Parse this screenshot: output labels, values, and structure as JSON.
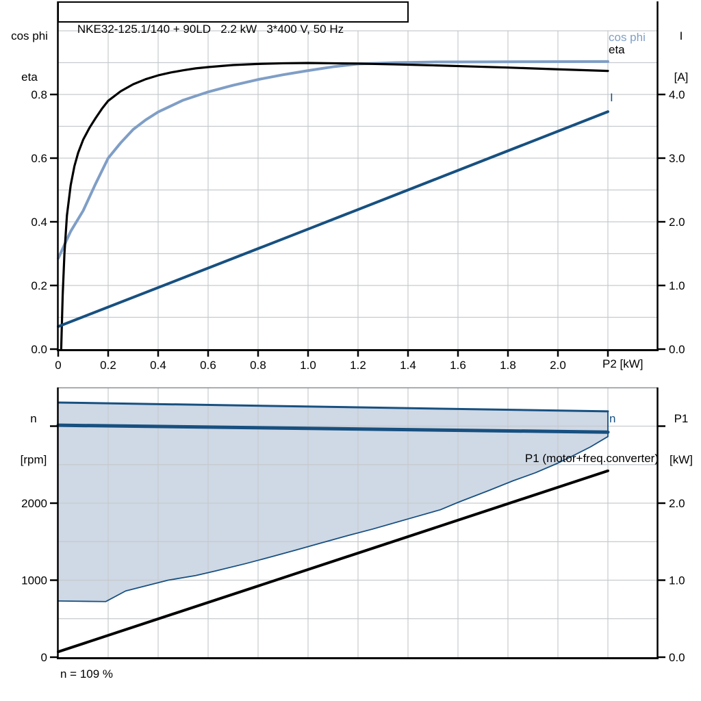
{
  "title": "NKE32-125.1/140 + 90LD   2.2 kW   3*400 V, 50 Hz",
  "axis_titles": {
    "top_left": [
      "cos phi",
      "eta"
    ],
    "top_right": [
      "I",
      "[A]"
    ],
    "bottom_left": [
      "n",
      "[rpm]"
    ],
    "bottom_right": [
      "P1",
      "[kW]"
    ],
    "x": "P2 [kW]"
  },
  "curve_labels": {
    "cos_phi": "cos phi",
    "eta": "eta",
    "current": "I",
    "speed": "n",
    "p1": "P1 (motor+freq.converter)"
  },
  "note": "n = 109 %",
  "colors": {
    "light_blue": "#7f9ec6",
    "dark_blue": "#175080",
    "envelope_fill": "#cfd8e5",
    "grid": "#c6cacd",
    "frame_gray": "#8a8f93",
    "axis": "#000000"
  },
  "chart_data": [
    {
      "id": "top-chart",
      "type": "line",
      "title": "NKE32-125.1/140 + 90LD   2.2 kW   3*400 V, 50 Hz",
      "x_axis": {
        "label": "P2 [kW]",
        "min": 0,
        "max": 2.4,
        "grid_step": 0.2,
        "ticks": [
          0,
          0.2,
          0.4,
          0.6,
          0.8,
          1.0,
          1.2,
          1.4,
          1.6,
          1.8,
          2.0,
          2.2
        ],
        "tick_labels": [
          "0",
          "0.2",
          "0.4",
          "0.6",
          "0.8",
          "1.0",
          "1.2",
          "1.4",
          "1.6",
          "1.8",
          "2.0",
          ""
        ]
      },
      "y_left": {
        "labels": [
          "cos phi",
          "eta"
        ],
        "min": 0,
        "max": 1.0,
        "grid_step": 0.1,
        "ticks": [
          0,
          0.2,
          0.4,
          0.6,
          0.8
        ],
        "tick_labels": [
          "0.0",
          "0.2",
          "0.4",
          "0.6",
          "0.8"
        ]
      },
      "y_right": {
        "labels": [
          "I",
          "[A]"
        ],
        "min": 0,
        "max": 5.0,
        "grid_step": 0.5,
        "ticks": [
          0,
          1,
          2,
          3,
          4
        ],
        "tick_labels": [
          "0.0",
          "1.0",
          "2.0",
          "3.0",
          "4.0"
        ]
      },
      "grid": true,
      "legend_position": "right-end-of-curves",
      "series": [
        {
          "name": "cos phi",
          "axis": "left",
          "color": "#7f9ec6",
          "width": 4,
          "points": [
            [
              0,
              0.285
            ],
            [
              0.05,
              0.37
            ],
            [
              0.1,
              0.435
            ],
            [
              0.15,
              0.52
            ],
            [
              0.2,
              0.6
            ],
            [
              0.25,
              0.648
            ],
            [
              0.3,
              0.69
            ],
            [
              0.35,
              0.72
            ],
            [
              0.4,
              0.745
            ],
            [
              0.5,
              0.782
            ],
            [
              0.6,
              0.808
            ],
            [
              0.7,
              0.829
            ],
            [
              0.8,
              0.847
            ],
            [
              0.9,
              0.862
            ],
            [
              1.0,
              0.875
            ],
            [
              1.1,
              0.887
            ],
            [
              1.2,
              0.896
            ],
            [
              1.35,
              0.9
            ],
            [
              1.5,
              0.902
            ],
            [
              1.7,
              0.9025
            ],
            [
              1.9,
              0.903
            ],
            [
              2.2,
              0.9035
            ]
          ]
        },
        {
          "name": "eta",
          "axis": "left",
          "color": "#000000",
          "width": 3.2,
          "points": [
            [
              0.012,
              0
            ],
            [
              0.018,
              0.17
            ],
            [
              0.025,
              0.3
            ],
            [
              0.035,
              0.42
            ],
            [
              0.05,
              0.515
            ],
            [
              0.065,
              0.575
            ],
            [
              0.08,
              0.617
            ],
            [
              0.1,
              0.658
            ],
            [
              0.125,
              0.695
            ],
            [
              0.15,
              0.726
            ],
            [
              0.175,
              0.755
            ],
            [
              0.2,
              0.78
            ],
            [
              0.25,
              0.81
            ],
            [
              0.3,
              0.832
            ],
            [
              0.35,
              0.848
            ],
            [
              0.4,
              0.86
            ],
            [
              0.45,
              0.869
            ],
            [
              0.5,
              0.876
            ],
            [
              0.55,
              0.882
            ],
            [
              0.6,
              0.886
            ],
            [
              0.7,
              0.8925
            ],
            [
              0.8,
              0.896
            ],
            [
              0.9,
              0.898
            ],
            [
              1.0,
              0.899
            ],
            [
              1.1,
              0.898
            ],
            [
              1.2,
              0.897
            ],
            [
              1.35,
              0.8945
            ],
            [
              1.5,
              0.8915
            ],
            [
              1.65,
              0.888
            ],
            [
              1.8,
              0.8845
            ],
            [
              2.0,
              0.879
            ],
            [
              2.2,
              0.874
            ]
          ]
        },
        {
          "name": "I",
          "axis": "right",
          "color": "#175080",
          "width": 4,
          "points": [
            [
              0,
              0.355
            ],
            [
              1.0,
              1.885
            ],
            [
              2.2,
              3.73
            ]
          ]
        }
      ]
    },
    {
      "id": "bottom-chart",
      "type": "line+area",
      "x_axis": {
        "label": "",
        "min": 0,
        "max": 2.4,
        "grid_step": 0.2,
        "ticks": [],
        "tick_labels": []
      },
      "y_left": {
        "labels": [
          "n",
          "[rpm]"
        ],
        "min": 0,
        "max": 3500,
        "grid_step": 500,
        "ticks": [
          0,
          1000,
          2000,
          3000
        ],
        "tick_labels": [
          "0",
          "1000",
          "2000",
          ""
        ]
      },
      "y_right": {
        "labels": [
          "P1",
          "[kW]"
        ],
        "min": 0,
        "max": 3.5,
        "grid_step": 0.5,
        "ticks": [
          0,
          1,
          2,
          3
        ],
        "tick_labels": [
          "0.0",
          "1.0",
          "2.0",
          ""
        ]
      },
      "grid": true,
      "envelope": {
        "name": "speed-control-range",
        "axis": "left",
        "fill": "#cfd8e5",
        "stroke": "#175080",
        "upper": [
          [
            0,
            3307
          ],
          [
            2.2,
            3192
          ]
        ],
        "lower": [
          [
            0,
            730
          ],
          [
            0.19,
            722
          ],
          [
            0.27,
            860
          ],
          [
            0.44,
            1000
          ],
          [
            0.55,
            1060
          ],
          [
            0.63,
            1120
          ],
          [
            0.75,
            1215
          ],
          [
            0.86,
            1310
          ],
          [
            0.95,
            1390
          ],
          [
            1.06,
            1490
          ],
          [
            1.16,
            1580
          ],
          [
            1.26,
            1665
          ],
          [
            1.4,
            1795
          ],
          [
            1.53,
            1915
          ],
          [
            1.6,
            2010
          ],
          [
            1.72,
            2160
          ],
          [
            1.82,
            2290
          ],
          [
            1.91,
            2395
          ],
          [
            2.0,
            2520
          ],
          [
            2.06,
            2615
          ],
          [
            2.13,
            2730
          ],
          [
            2.2,
            2865
          ]
        ]
      },
      "series": [
        {
          "name": "n",
          "axis": "left",
          "color": "#175080",
          "width": 5,
          "points": [
            [
              0,
              3012
            ],
            [
              2.2,
              2922
            ]
          ]
        },
        {
          "name": "P1 (motor+freq.converter)",
          "axis": "right",
          "color": "#000000",
          "width": 4,
          "points": [
            [
              0,
              0.07
            ],
            [
              2.2,
              2.42
            ]
          ]
        }
      ],
      "note": "n = 109 %"
    }
  ]
}
